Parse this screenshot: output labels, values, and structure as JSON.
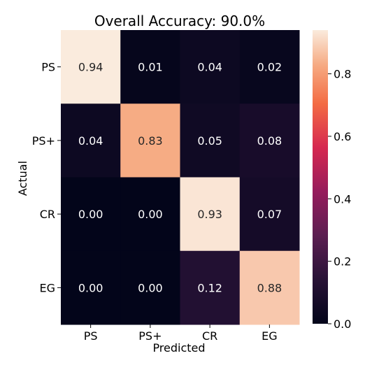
{
  "chart_data": {
    "type": "heatmap",
    "title": "Overall Accuracy: 90.0%",
    "xlabel": "Predicted",
    "ylabel": "Actual",
    "x_categories": [
      "PS",
      "PS+",
      "CR",
      "EG"
    ],
    "y_categories": [
      "PS",
      "PS+",
      "CR",
      "EG"
    ],
    "values": [
      [
        0.94,
        0.01,
        0.04,
        0.02
      ],
      [
        0.04,
        0.83,
        0.05,
        0.08
      ],
      [
        0.0,
        0.0,
        0.93,
        0.07
      ],
      [
        0.0,
        0.0,
        0.12,
        0.88
      ]
    ],
    "value_labels": [
      [
        "0.94",
        "0.01",
        "0.04",
        "0.02"
      ],
      [
        "0.04",
        "0.83",
        "0.05",
        "0.08"
      ],
      [
        "0.00",
        "0.00",
        "0.93",
        "0.07"
      ],
      [
        "0.00",
        "0.00",
        "0.12",
        "0.88"
      ]
    ],
    "colorbar": {
      "range": [
        0.0,
        0.94
      ],
      "ticks": [
        0.0,
        0.2,
        0.4,
        0.6,
        0.8
      ],
      "tick_labels": [
        "0.0",
        "0.2",
        "0.4",
        "0.6",
        "0.8"
      ]
    },
    "colormap": "rocket",
    "grid": false
  }
}
